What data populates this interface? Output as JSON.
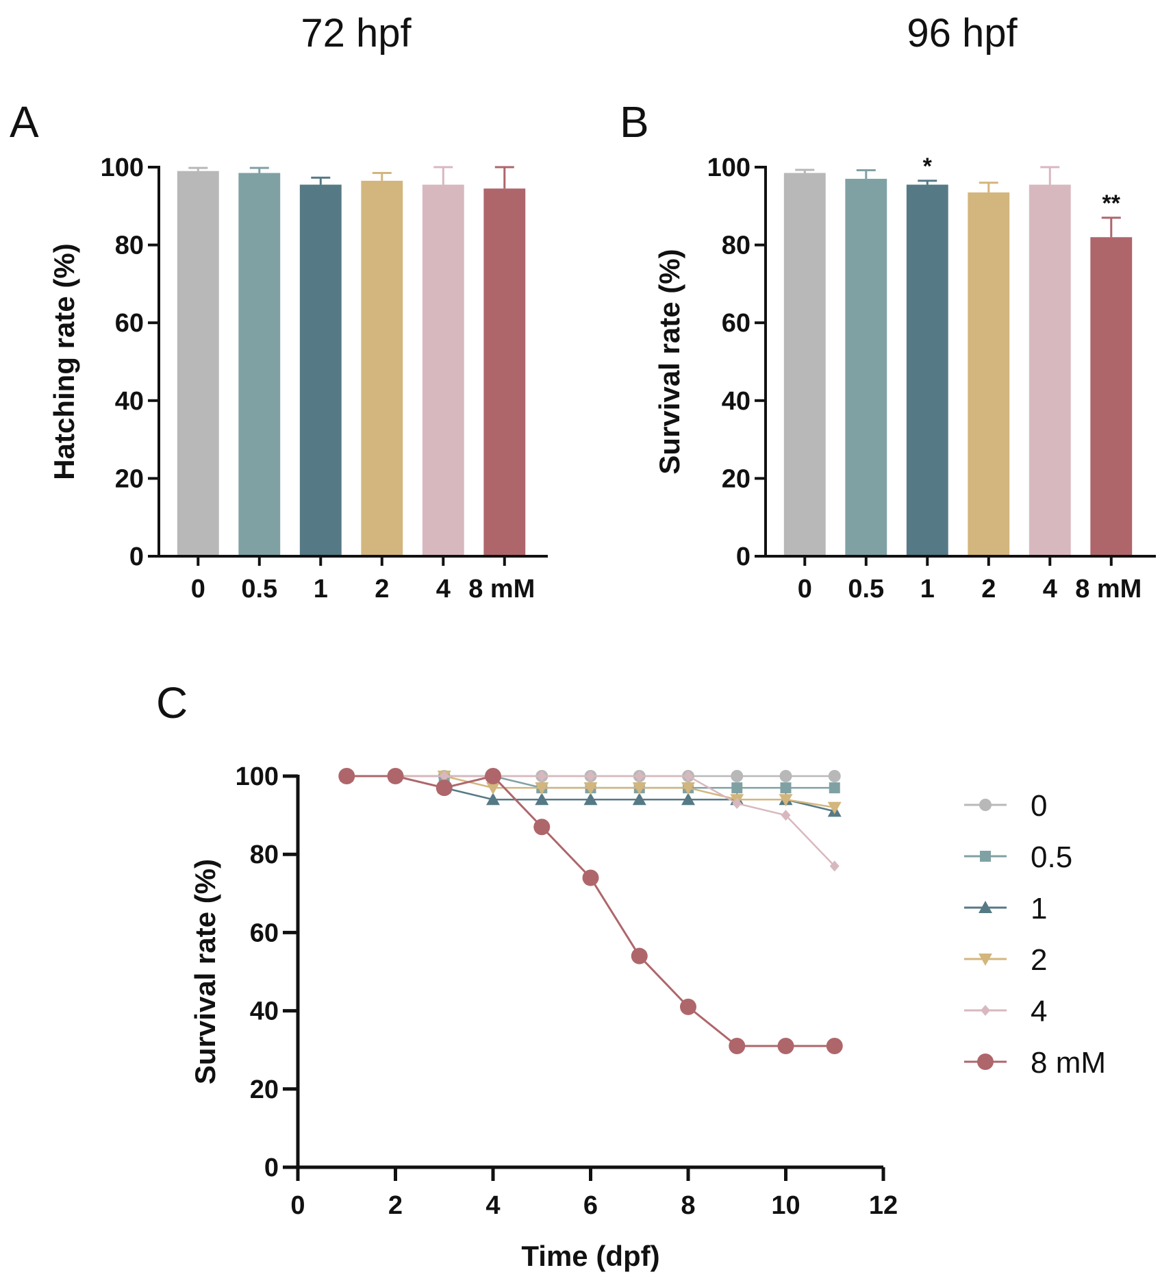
{
  "headers": {
    "left": "72 hpf",
    "right": "96 hpf"
  },
  "colors": {
    "0": "#b8b8b8",
    "0.5": "#80a1a4",
    "1": "#567986",
    "2": "#d3b67d",
    "4": "#d8b8bf",
    "8": "#ae666b",
    "axis": "#111111"
  },
  "chart_data": [
    {
      "panel": "A",
      "type": "bar",
      "header": "72 hpf",
      "categories": [
        "0",
        "0.5",
        "1",
        "2",
        "4",
        "8 mM"
      ],
      "values": [
        99,
        98.5,
        95.5,
        96.5,
        95.5,
        94.5
      ],
      "errors": [
        0.8,
        1.3,
        1.8,
        2.0,
        4.5,
        5.5
      ],
      "significance": [
        "",
        "",
        "",
        "",
        "",
        ""
      ],
      "ylabel": "Hatching rate (%)",
      "xlabel": "",
      "ylim": [
        0,
        100
      ],
      "yticks": [
        0,
        20,
        40,
        60,
        80,
        100
      ]
    },
    {
      "panel": "B",
      "type": "bar",
      "header": "96 hpf",
      "categories": [
        "0",
        "0.5",
        "1",
        "2",
        "4",
        "8 mM"
      ],
      "values": [
        98.5,
        97,
        95.5,
        93.5,
        95.5,
        82
      ],
      "errors": [
        0.8,
        2.2,
        1.0,
        2.5,
        4.5,
        5.0
      ],
      "significance": [
        "",
        "",
        "*",
        "",
        "",
        "**"
      ],
      "ylabel": "Survival rate (%)",
      "xlabel": "",
      "ylim": [
        0,
        100
      ],
      "yticks": [
        0,
        20,
        40,
        60,
        80,
        100
      ]
    },
    {
      "panel": "C",
      "type": "line",
      "x": [
        1,
        2,
        3,
        4,
        5,
        6,
        7,
        8,
        9,
        10,
        11
      ],
      "series": [
        {
          "name": "0",
          "marker": "circle",
          "values": [
            100,
            100,
            100,
            100,
            100,
            100,
            100,
            100,
            100,
            100,
            100
          ]
        },
        {
          "name": "0.5",
          "marker": "square",
          "values": [
            100,
            100,
            100,
            100,
            97,
            97,
            97,
            97,
            97,
            97,
            97
          ]
        },
        {
          "name": "1",
          "marker": "triangle-up",
          "values": [
            100,
            100,
            97,
            94,
            94,
            94,
            94,
            94,
            94,
            94,
            91
          ]
        },
        {
          "name": "2",
          "marker": "triangle-down",
          "values": [
            100,
            100,
            100,
            97,
            97,
            97,
            97,
            97,
            94,
            94,
            92
          ]
        },
        {
          "name": "4",
          "marker": "diamond",
          "values": [
            100,
            100,
            100,
            100,
            100,
            100,
            100,
            100,
            93,
            90,
            77
          ]
        },
        {
          "name": "8 mM",
          "marker": "circle-large",
          "values": [
            100,
            100,
            97,
            100,
            87,
            74,
            54,
            41,
            31,
            31,
            31
          ]
        }
      ],
      "xlabel": "Time (dpf)",
      "ylabel": "Survival rate (%)",
      "xlim": [
        0,
        12
      ],
      "ylim": [
        0,
        100
      ],
      "xticks": [
        0,
        2,
        4,
        6,
        8,
        10,
        12
      ],
      "yticks": [
        0,
        20,
        40,
        60,
        80,
        100
      ],
      "legend_position": "right"
    }
  ]
}
